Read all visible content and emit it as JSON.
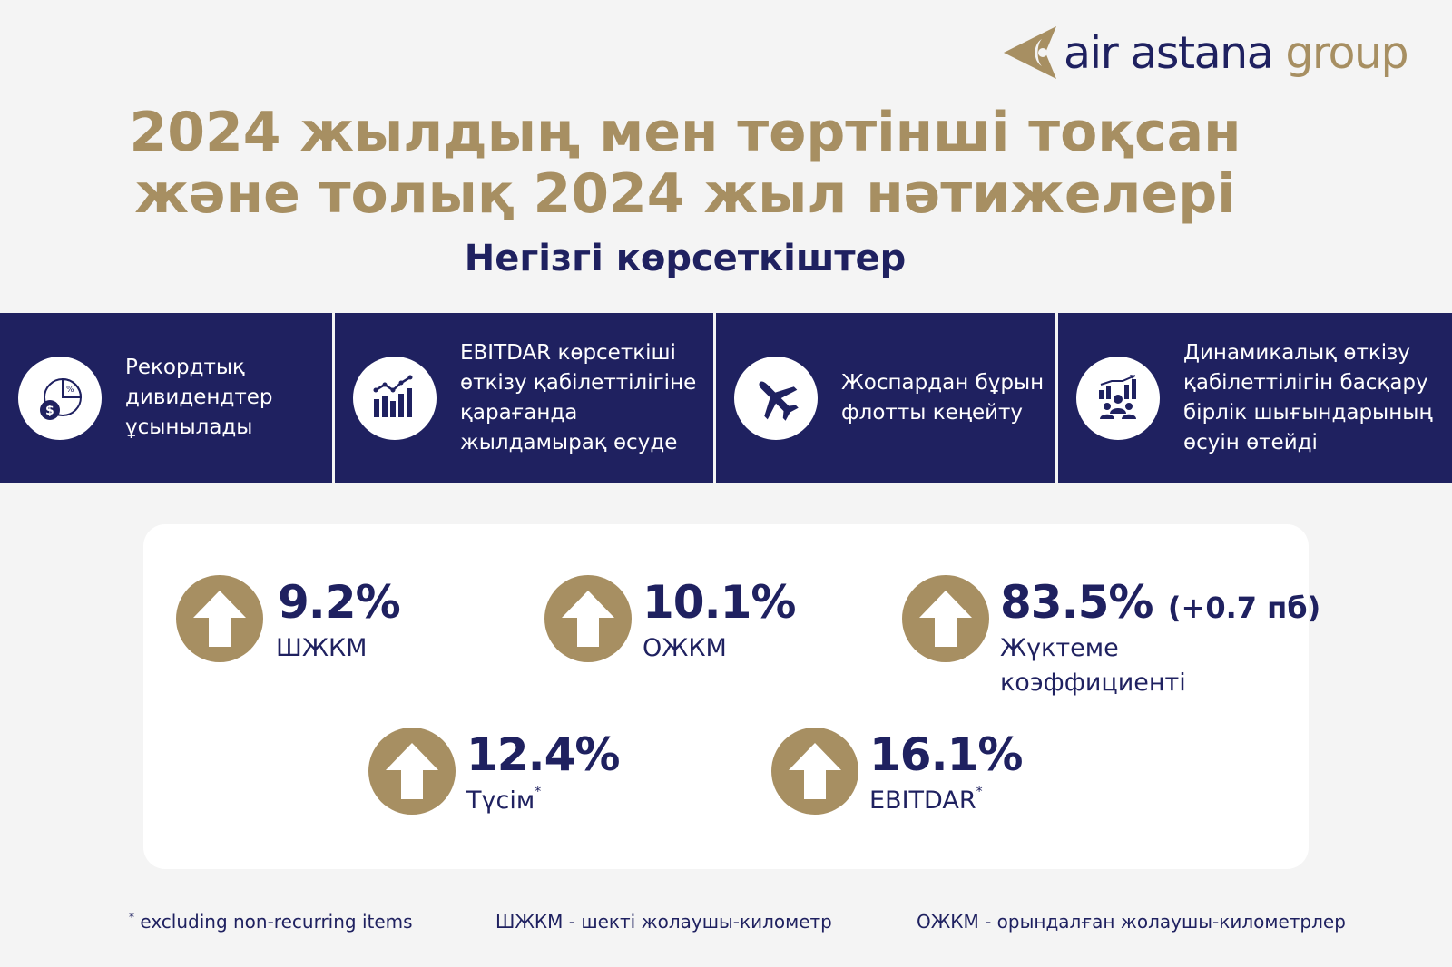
{
  "logo": {
    "word1": "air astana",
    "word2": "group"
  },
  "title": {
    "line1": "2024 жылдың мен төртінші тоқсан",
    "line2": "және толық 2024 жыл нәтижелері",
    "subtitle": "Негізгі көрсеткіштер"
  },
  "highlights": [
    {
      "icon": "pie-chart-dollar-icon",
      "text": [
        "Рекордтық",
        "дивидендтер",
        "ұсынылады"
      ]
    },
    {
      "icon": "bar-chart-growth-icon",
      "text": [
        "EBITDAR көрсеткіші",
        "өткізу қабілеттілігіне",
        "қарағанда",
        "жылдамырақ өсуде"
      ]
    },
    {
      "icon": "airplane-icon",
      "text": [
        "Жоспардан бұрын",
        "флотты кеңейту"
      ]
    },
    {
      "icon": "people-chart-icon",
      "text": [
        "Динамикалық өткізу",
        "қабілеттілігін басқару",
        "бірлік шығындарының",
        "өсуін өтейді"
      ]
    }
  ],
  "metrics": [
    {
      "value": "9.2%",
      "label": "ШЖКМ",
      "trend": "up"
    },
    {
      "value": "10.1%",
      "label": "ОЖКМ",
      "trend": "up"
    },
    {
      "value": "83.5%",
      "extra": "(+0.7 пб)",
      "label": [
        "Жүктеме",
        "коэффициенті"
      ],
      "trend": "up"
    },
    {
      "value": "12.4%",
      "label": "Түсім",
      "mark": "*",
      "trend": "up"
    },
    {
      "value": "16.1%",
      "label": "EBITDAR",
      "mark": "*",
      "trend": "up"
    }
  ],
  "footnotes": {
    "mark": "*",
    "excluding": "excluding non-recurring items",
    "ask": "ШЖКМ - шекті жолаушы-километр",
    "rpk": "ОЖКМ - орындалған жолаушы-километрлер"
  },
  "colors": {
    "navy": "#1f2160",
    "gold": "#a78f62",
    "background": "#f4f4f4"
  }
}
